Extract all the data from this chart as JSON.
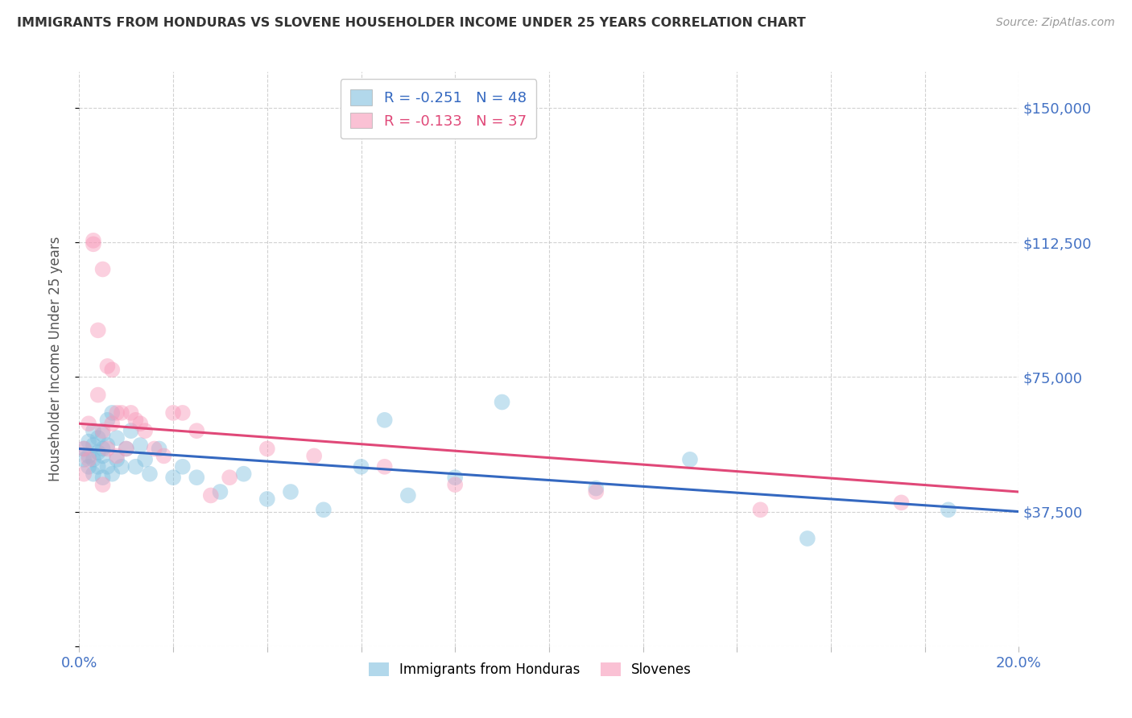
{
  "title": "IMMIGRANTS FROM HONDURAS VS SLOVENE HOUSEHOLDER INCOME UNDER 25 YEARS CORRELATION CHART",
  "source": "Source: ZipAtlas.com",
  "ylabel": "Householder Income Under 25 years",
  "xlim_min": 0.0,
  "xlim_max": 0.2,
  "ylim_min": 0,
  "ylim_max": 160000,
  "yticks": [
    0,
    37500,
    75000,
    112500,
    150000
  ],
  "ytick_labels": [
    "",
    "$37,500",
    "$75,000",
    "$112,500",
    "$150,000"
  ],
  "blue_label": "Immigrants from Honduras",
  "pink_label": "Slovenes",
  "blue_R": -0.251,
  "blue_N": 48,
  "pink_R": -0.133,
  "pink_N": 37,
  "blue_color": "#7fbfdf",
  "pink_color": "#f898b8",
  "trend_blue": "#3468c0",
  "trend_pink": "#e04878",
  "background_color": "#ffffff",
  "grid_color": "#cccccc",
  "title_color": "#333333",
  "axis_label_color": "#4472c4",
  "blue_trend_x0": 0.0,
  "blue_trend_y0": 55000,
  "blue_trend_x1": 0.2,
  "blue_trend_y1": 37500,
  "pink_trend_x0": 0.0,
  "pink_trend_y0": 62000,
  "pink_trend_x1": 0.2,
  "pink_trend_y1": 43000,
  "blue_x": [
    0.001,
    0.001,
    0.002,
    0.002,
    0.002,
    0.003,
    0.003,
    0.003,
    0.003,
    0.004,
    0.004,
    0.004,
    0.005,
    0.005,
    0.005,
    0.005,
    0.006,
    0.006,
    0.006,
    0.007,
    0.007,
    0.008,
    0.008,
    0.009,
    0.01,
    0.011,
    0.012,
    0.013,
    0.014,
    0.015,
    0.017,
    0.02,
    0.022,
    0.025,
    0.03,
    0.035,
    0.04,
    0.045,
    0.052,
    0.06,
    0.065,
    0.07,
    0.08,
    0.09,
    0.11,
    0.13,
    0.155,
    0.185
  ],
  "blue_y": [
    55000,
    52000,
    57000,
    53000,
    50000,
    60000,
    56000,
    52000,
    48000,
    58000,
    54000,
    50000,
    55000,
    59000,
    53000,
    47000,
    63000,
    56000,
    50000,
    65000,
    48000,
    58000,
    52000,
    50000,
    55000,
    60000,
    50000,
    56000,
    52000,
    48000,
    55000,
    47000,
    50000,
    47000,
    43000,
    48000,
    41000,
    43000,
    38000,
    50000,
    63000,
    42000,
    47000,
    68000,
    44000,
    52000,
    30000,
    38000
  ],
  "pink_x": [
    0.001,
    0.001,
    0.002,
    0.002,
    0.003,
    0.003,
    0.004,
    0.004,
    0.005,
    0.005,
    0.005,
    0.006,
    0.006,
    0.007,
    0.007,
    0.008,
    0.008,
    0.009,
    0.01,
    0.011,
    0.012,
    0.013,
    0.014,
    0.016,
    0.018,
    0.02,
    0.022,
    0.025,
    0.028,
    0.032,
    0.04,
    0.05,
    0.065,
    0.08,
    0.11,
    0.145,
    0.175
  ],
  "pink_y": [
    55000,
    48000,
    62000,
    52000,
    113000,
    112000,
    88000,
    70000,
    105000,
    60000,
    45000,
    78000,
    55000,
    77000,
    62000,
    65000,
    53000,
    65000,
    55000,
    65000,
    63000,
    62000,
    60000,
    55000,
    53000,
    65000,
    65000,
    60000,
    42000,
    47000,
    55000,
    53000,
    50000,
    45000,
    43000,
    38000,
    40000
  ]
}
